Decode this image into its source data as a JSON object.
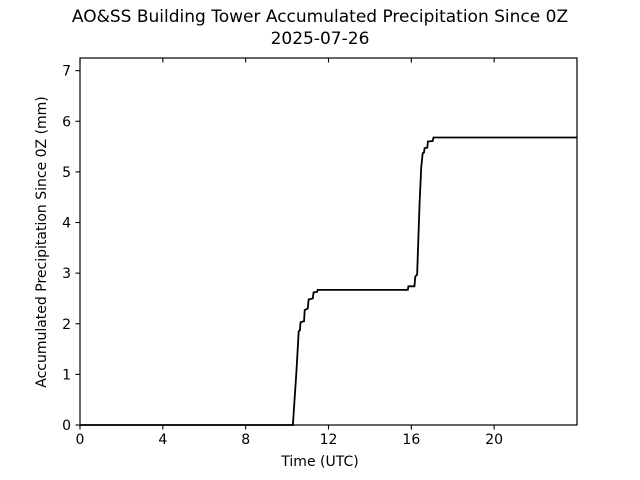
{
  "figure": {
    "title_line1": "AO&SS Building Tower Accumulated Precipitation Since 0Z",
    "title_line2": "2025-07-26",
    "background": "#ffffff"
  },
  "chart_data": {
    "type": "line",
    "title": "AO&SS Building Tower Accumulated Precipitation Since 0Z 2025-07-26",
    "xlabel": "Time (UTC)",
    "ylabel": "Accumulated Precipitation Since 0Z (mm)",
    "xlim": [
      0,
      24
    ],
    "ylim": [
      0,
      7.25
    ],
    "xticks": [
      0,
      4,
      8,
      12,
      16,
      20
    ],
    "yticks": [
      0,
      1,
      2,
      3,
      4,
      5,
      6,
      7
    ],
    "grid": false,
    "legend": false,
    "line_color": "#000000",
    "line_width": 1.8,
    "series": [
      {
        "name": "accumulated-precipitation-mm",
        "color": "#000000",
        "points": [
          [
            0.0,
            0.0
          ],
          [
            10.28,
            0.0
          ],
          [
            10.45,
            1.05
          ],
          [
            10.52,
            1.55
          ],
          [
            10.56,
            1.85
          ],
          [
            10.62,
            1.87
          ],
          [
            10.65,
            2.03
          ],
          [
            10.82,
            2.05
          ],
          [
            10.85,
            2.27
          ],
          [
            11.0,
            2.3
          ],
          [
            11.04,
            2.48
          ],
          [
            11.24,
            2.5
          ],
          [
            11.28,
            2.62
          ],
          [
            11.45,
            2.63
          ],
          [
            11.48,
            2.67
          ],
          [
            15.83,
            2.67
          ],
          [
            15.86,
            2.74
          ],
          [
            16.15,
            2.74
          ],
          [
            16.19,
            2.93
          ],
          [
            16.28,
            2.97
          ],
          [
            16.4,
            4.4
          ],
          [
            16.48,
            5.1
          ],
          [
            16.55,
            5.37
          ],
          [
            16.61,
            5.38
          ],
          [
            16.64,
            5.47
          ],
          [
            16.77,
            5.48
          ],
          [
            16.8,
            5.6
          ],
          [
            17.03,
            5.61
          ],
          [
            17.07,
            5.68
          ],
          [
            24.0,
            5.68
          ]
        ]
      }
    ]
  }
}
